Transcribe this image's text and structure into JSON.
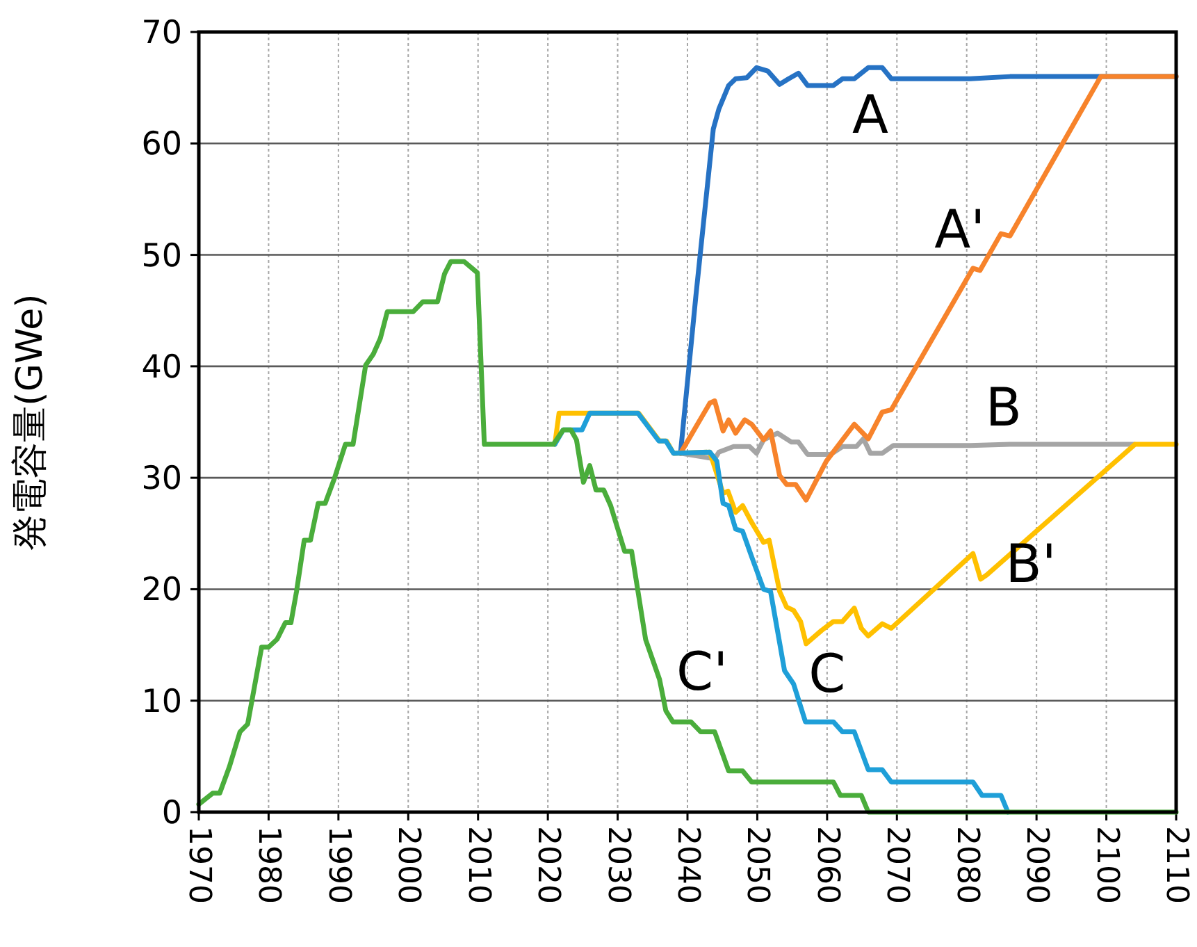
{
  "chart_data": {
    "type": "line",
    "ylabel": "発電容量(GWe)",
    "xlim": [
      1970,
      2110
    ],
    "ylim": [
      0,
      70
    ],
    "xticks": [
      1970,
      1980,
      1990,
      2000,
      2010,
      2020,
      2030,
      2040,
      2050,
      2060,
      2070,
      2080,
      2090,
      2100,
      2110
    ],
    "yticks": [
      0,
      10,
      20,
      30,
      40,
      50,
      60,
      70
    ],
    "grid": true,
    "marker": "none",
    "line_style": "solid",
    "series": [
      {
        "name": "A",
        "color": "#2672c4",
        "x": [
          2039,
          2041.2,
          2043.7,
          2044.5,
          2045.9,
          2046.9,
          2048.5,
          2049.9,
          2051.5,
          2053.2,
          2054.5,
          2055.9,
          2057.2,
          2060.9,
          2062.2,
          2063.9,
          2065.9,
          2067.9,
          2069.2,
          2080.5,
          2086.2,
          2099.2,
          2110
        ],
        "values": [
          32.2,
          46.3,
          61.3,
          63.1,
          65.2,
          65.8,
          65.9,
          66.8,
          66.5,
          65.3,
          65.8,
          66.3,
          65.2,
          65.2,
          65.8,
          65.8,
          66.8,
          66.8,
          65.8,
          65.8,
          66,
          66,
          66
        ]
      },
      {
        "name": "B",
        "color": "#a5a5a5",
        "x": [
          2039,
          2043.9,
          2044.5,
          2046.6,
          2048.9,
          2049.9,
          2050.9,
          2052.9,
          2054.9,
          2055.9,
          2057.2,
          2060.5,
          2062.2,
          2064.2,
          2065.2,
          2066.2,
          2067.9,
          2069.5,
          2080.5,
          2086.2,
          2104
        ],
        "values": [
          32.2,
          31.7,
          32.3,
          32.8,
          32.8,
          32.2,
          33.4,
          34,
          33.2,
          33.2,
          32.1,
          32.1,
          32.8,
          32.8,
          33.5,
          32.2,
          32.2,
          32.9,
          32.9,
          33,
          33
        ]
      },
      {
        "name": "A'",
        "color": "#f7832b",
        "x": [
          2039,
          2043.2,
          2043.9,
          2045.1,
          2045.9,
          2046.9,
          2048.2,
          2049.2,
          2050.9,
          2051.9,
          2053.2,
          2054.2,
          2055.5,
          2057,
          2059.9,
          2063.9,
          2065.9,
          2067.9,
          2069.2,
          2080.9,
          2081.9,
          2084.9,
          2086.2,
          2099.2,
          2110
        ],
        "values": [
          32.2,
          36.7,
          36.9,
          34.2,
          35.2,
          34,
          35.2,
          34.8,
          33.4,
          34.2,
          30.2,
          29.4,
          29.4,
          28,
          31.5,
          34.8,
          33.5,
          35.9,
          36.1,
          48.8,
          48.6,
          51.9,
          51.7,
          66,
          66
        ]
      },
      {
        "name": "B'",
        "color": "#ffc000",
        "x": [
          2021,
          2021.6,
          2033,
          2036,
          2037,
          2038,
          2043.2,
          2045.1,
          2045.8,
          2046.9,
          2047.9,
          2049.1,
          2050.9,
          2051.7,
          2053.2,
          2054.2,
          2055.2,
          2056.2,
          2057,
          2059.2,
          2060.9,
          2062.2,
          2063.9,
          2064.9,
          2065.9,
          2067.9,
          2069.2,
          2080.9,
          2082,
          2082.9,
          2104.1,
          2110
        ],
        "values": [
          33,
          35.8,
          35.8,
          33.3,
          33.3,
          32.2,
          32.3,
          28.6,
          28.8,
          26.9,
          27.5,
          26.1,
          24.2,
          24.4,
          19.8,
          18.4,
          18.1,
          17.1,
          15.1,
          16.3,
          17.1,
          17.1,
          18.3,
          16.5,
          15.8,
          16.9,
          16.5,
          23.2,
          20.9,
          21.3,
          33,
          33
        ]
      },
      {
        "name": "C",
        "color": "#1f9fd8",
        "x": [
          2021,
          2022.2,
          2024.9,
          2026,
          2032.9,
          2035.9,
          2036.9,
          2038,
          2043.2,
          2044.2,
          2045.1,
          2045.9,
          2046.9,
          2047.9,
          2049.2,
          2050.9,
          2051.9,
          2053.9,
          2055.2,
          2056.9,
          2060.9,
          2062.2,
          2063.9,
          2065.9,
          2067.9,
          2069.2,
          2080.9,
          2082.2,
          2084.9,
          2085.9
        ],
        "values": [
          33,
          34.3,
          34.3,
          35.8,
          35.8,
          33.3,
          33.3,
          32.2,
          32.3,
          31.5,
          27.7,
          27.5,
          25.4,
          25.2,
          22.9,
          20,
          19.8,
          12.7,
          11.5,
          8.1,
          8.1,
          7.2,
          7.2,
          3.8,
          3.8,
          2.7,
          2.7,
          1.5,
          1.5,
          0
        ]
      },
      {
        "name": "C'",
        "color": "#4aad3b",
        "x": [
          1970,
          1972,
          1973,
          1974.4,
          1975.9,
          1977,
          1979,
          1980,
          1981.2,
          1982.4,
          1983.2,
          1984,
          1985.1,
          1986,
          1987.1,
          1988.1,
          1989.4,
          1991,
          1992.1,
          1993.9,
          1995,
          1996,
          1997,
          2000.7,
          2002.1,
          2004.2,
          2005.2,
          2006.1,
          2008,
          2009.9,
          2010.9,
          2020.8,
          2022.2,
          2023.3,
          2024.1,
          2025.1,
          2026,
          2026.9,
          2028,
          2029,
          2031,
          2032,
          2034,
          2036,
          2036.9,
          2037.9,
          2040.5,
          2041.9,
          2043.9,
          2045.9,
          2047.9,
          2049.2,
          2060.9,
          2061.9,
          2064.9,
          2065.9,
          2110
        ],
        "values": [
          0.7,
          1.7,
          1.7,
          4.1,
          7.2,
          7.9,
          14.8,
          14.8,
          15.5,
          17,
          17,
          19.8,
          24.4,
          24.4,
          27.7,
          27.7,
          29.9,
          33,
          33,
          40.1,
          41.1,
          42.5,
          44.9,
          44.9,
          45.8,
          45.8,
          48.3,
          49.4,
          49.4,
          48.4,
          33,
          33,
          34.3,
          34.3,
          33.4,
          29.6,
          31.1,
          28.9,
          28.9,
          27.5,
          23.4,
          23.4,
          15.5,
          11.9,
          9.1,
          8.1,
          8.1,
          7.2,
          7.2,
          3.7,
          3.7,
          2.7,
          2.7,
          1.5,
          1.5,
          0,
          0
        ]
      }
    ]
  }
}
